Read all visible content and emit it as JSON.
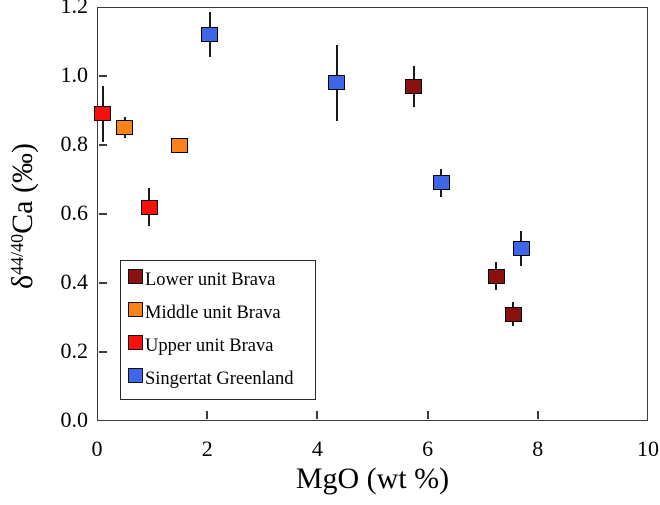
{
  "chart_data": {
    "type": "scatter",
    "title": "",
    "xlabel": "MgO (wt %)",
    "ylabel": "δ44/40Ca (‰)",
    "ylabel_parts": {
      "delta": "δ",
      "sup": "44/40",
      "rest": "Ca (‰)"
    },
    "xlim": [
      0,
      10
    ],
    "ylim": [
      0,
      1.2
    ],
    "xticks": [
      0,
      2,
      4,
      6,
      8,
      10
    ],
    "xtick_labels": [
      "0",
      "2",
      "4",
      "6",
      "8",
      "10"
    ],
    "ytick_labels": [
      "0.0",
      "0.2",
      "0.4",
      "0.6",
      "0.8",
      "1.0",
      "1.2"
    ],
    "grid": false,
    "legend_position": "lower-left",
    "marker": "square",
    "error_bars": "vertical, no caps",
    "series": [
      {
        "name": "Lower unit Brava",
        "color": "#8B1010",
        "points": [
          {
            "x": 5.75,
            "y": 0.97,
            "yerr": 0.06
          },
          {
            "x": 7.25,
            "y": 0.42,
            "yerr": 0.04
          },
          {
            "x": 7.55,
            "y": 0.31,
            "yerr": 0.035
          }
        ]
      },
      {
        "name": "Middle unit Brava",
        "color": "#F8821C",
        "points": [
          {
            "x": 0.5,
            "y": 0.85,
            "yerr": 0.03
          },
          {
            "x": 1.5,
            "y": 0.8,
            "yerr": 0.02
          }
        ]
      },
      {
        "name": "Upper unit Brava",
        "color": "#F90F0C",
        "points": [
          {
            "x": 0.1,
            "y": 0.89,
            "yerr": 0.08
          },
          {
            "x": 0.95,
            "y": 0.62,
            "yerr": 0.055
          }
        ]
      },
      {
        "name": "Singertat Greenland",
        "color": "#3F66E6",
        "points": [
          {
            "x": 2.05,
            "y": 1.12,
            "yerr": 0.065
          },
          {
            "x": 4.35,
            "y": 0.98,
            "yerr": 0.11
          },
          {
            "x": 6.25,
            "y": 0.69,
            "yerr": 0.04
          },
          {
            "x": 7.7,
            "y": 0.5,
            "yerr": 0.05
          }
        ]
      }
    ]
  }
}
